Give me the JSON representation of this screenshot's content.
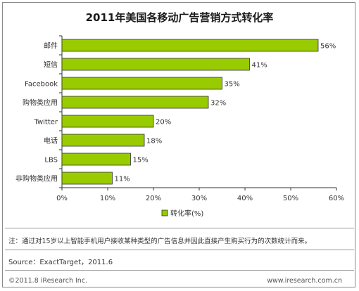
{
  "chart_data": {
    "type": "bar",
    "orientation": "horizontal",
    "title": "2011年美国各移动广告营销方式转化率",
    "categories": [
      "邮件",
      "短信",
      "Facebook",
      "购物类应用",
      "Twitter",
      "电话",
      "LBS",
      "非购物类应用"
    ],
    "values": [
      56,
      41,
      35,
      32,
      20,
      18,
      15,
      11
    ],
    "value_suffix": "%",
    "xlim": [
      0,
      60
    ],
    "xticks": [
      "0%",
      "10%",
      "20%",
      "30%",
      "40%",
      "50%",
      "60%"
    ],
    "legend": "转化率(%)",
    "legend_position": "bottom",
    "grid": false,
    "bar_color": "#99cc00"
  },
  "footer": {
    "note": "注：通过对15岁以上智能手机用户接收某种类型的广告信息并因此直接产生购买行为的次数统计而来。",
    "source": "Source：ExactTarget，2011.6",
    "copyright": "©2011.8 iResearch Inc.",
    "website": "www.iresearch.com.cn"
  }
}
